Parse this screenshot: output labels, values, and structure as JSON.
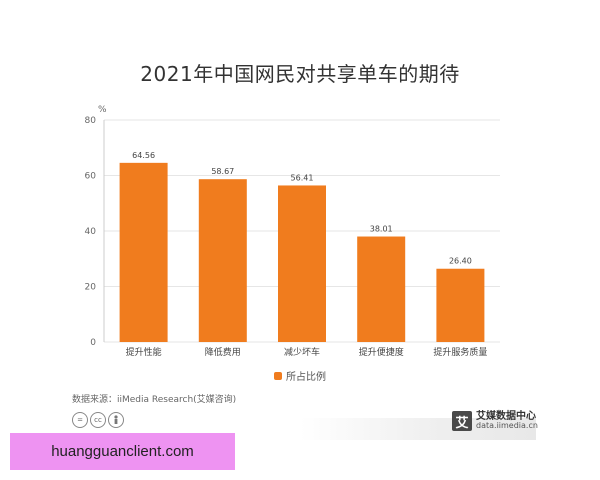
{
  "title": "2021年中国网民对共享单车的期待",
  "chart_data": {
    "type": "bar",
    "title": "2021年中国网民对共享单车的期待",
    "ylabel": "%",
    "xlabel": "",
    "ylim": [
      0,
      80
    ],
    "yticks": [
      0,
      20,
      40,
      60,
      80
    ],
    "categories": [
      "提升性能",
      "降低费用",
      "减少坏车",
      "提升便捷度",
      "提升服务质量"
    ],
    "series": [
      {
        "name": "所占比例",
        "values": [
          64.56,
          58.67,
          56.41,
          38.01,
          26.4
        ],
        "color": "#f07c1e"
      }
    ],
    "value_labels": [
      "64.56",
      "58.67",
      "56.41",
      "38.01",
      "26.40"
    ],
    "grid": true,
    "legend": "bottom"
  },
  "source": "数据来源：iiMedia Research(艾媒咨询)",
  "license_icons": [
    "=",
    "cc",
    "person-icon"
  ],
  "brand": {
    "logo_char": "艾",
    "name": "艾媒数据中心",
    "url": "data.iimedia.cn"
  },
  "watermark": "huangguanclient.com",
  "colors": {
    "bar": "#f07c1e",
    "watermark_bg": "#ee93f2"
  }
}
